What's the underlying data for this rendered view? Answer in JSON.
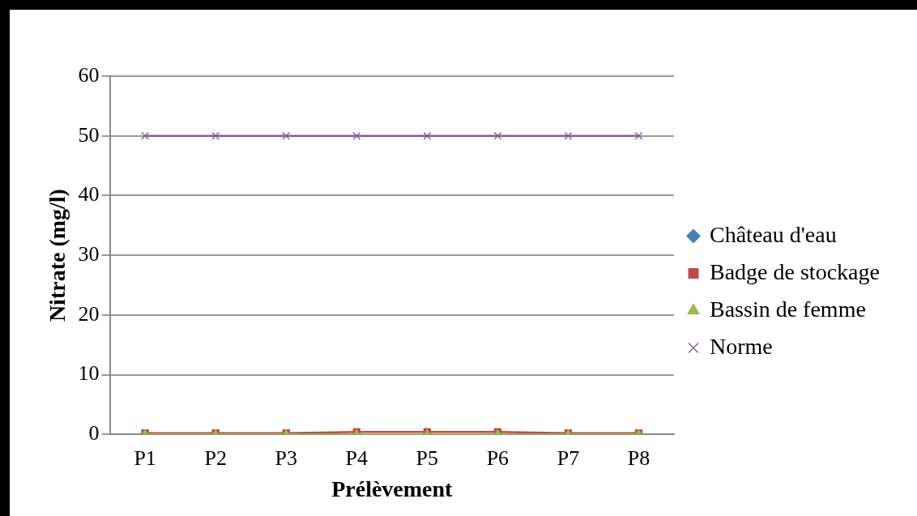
{
  "chart_data": {
    "type": "line",
    "xlabel": "Prélèvement",
    "ylabel": "Nitrate (mg/l)",
    "categories": [
      "P1",
      "P2",
      "P3",
      "P4",
      "P5",
      "P6",
      "P7",
      "P8"
    ],
    "series": [
      {
        "name": "Château d'eau",
        "color": "#4a7ebb",
        "marker": "diamond",
        "values": [
          null,
          null,
          null,
          null,
          null,
          null,
          null,
          null
        ]
      },
      {
        "name": "Badge de stockage",
        "color": "#be4b48",
        "marker": "square",
        "values": [
          0.2,
          0.2,
          0.2,
          0.4,
          0.4,
          0.4,
          0.2,
          0.2
        ]
      },
      {
        "name": "Bassin de femme",
        "color": "#98b954",
        "marker": "triangle",
        "values": [
          0,
          0,
          0,
          0,
          0,
          0,
          0,
          0
        ]
      },
      {
        "name": "Norme",
        "color": "#7d60a0",
        "marker": "cross",
        "values": [
          50,
          50,
          50,
          50,
          50,
          50,
          50,
          50
        ]
      }
    ],
    "ylim": [
      0,
      60
    ],
    "yticks": [
      0,
      10,
      20,
      30,
      40,
      50,
      60
    ],
    "grid": "y",
    "legend": "right"
  }
}
